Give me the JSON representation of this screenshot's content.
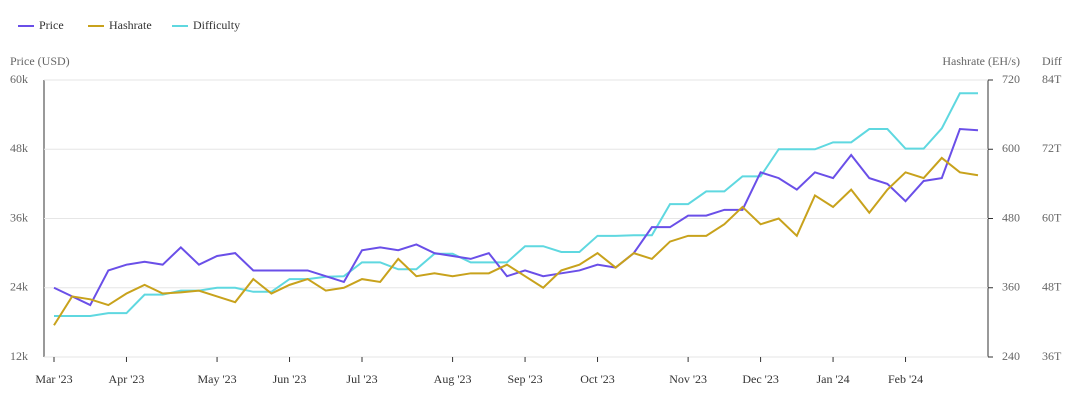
{
  "chart_data": {
    "type": "line",
    "y_label": "Price (USD)",
    "y2_label": "Hashrate (EH/s)",
    "y3_label": "Diff",
    "categories": [
      "Mar '23",
      null,
      null,
      null,
      "Apr '23",
      null,
      null,
      null,
      null,
      "May '23",
      null,
      null,
      null,
      "Jun '23",
      null,
      null,
      null,
      "Jul '23",
      null,
      null,
      null,
      null,
      "Aug '23",
      null,
      null,
      null,
      "Sep '23",
      null,
      null,
      null,
      "Oct '23",
      null,
      null,
      null,
      null,
      "Nov '23",
      null,
      null,
      null,
      "Dec '23",
      null,
      null,
      null,
      "Jan '24",
      null,
      null,
      null,
      "Feb '24",
      null,
      null,
      null,
      null
    ],
    "series": [
      {
        "name": "Price",
        "color": "#6a4fe8",
        "axis": "y",
        "values": [
          24000,
          22500,
          21000,
          27000,
          28000,
          28500,
          28000,
          31000,
          28000,
          29500,
          30000,
          27000,
          27000,
          27000,
          27000,
          26000,
          25000,
          30500,
          31000,
          30500,
          31500,
          30000,
          29500,
          29000,
          30000,
          26000,
          27000,
          26000,
          26500,
          27000,
          28000,
          27500,
          30000,
          34500,
          34500,
          36500,
          36500,
          37500,
          37500,
          44000,
          43000,
          41000,
          44000,
          43000,
          47000,
          43000,
          42000,
          39000,
          42500,
          43000,
          51500,
          51300
        ]
      },
      {
        "name": "Hashrate",
        "color": "#c8a21c",
        "axis": "y2",
        "values": [
          295,
          345,
          340,
          330,
          350,
          365,
          350,
          352,
          355,
          345,
          335,
          375,
          350,
          365,
          375,
          355,
          360,
          375,
          370,
          410,
          380,
          385,
          380,
          385,
          385,
          400,
          380,
          360,
          390,
          400,
          420,
          395,
          420,
          410,
          440,
          450,
          450,
          470,
          500,
          470,
          480,
          450,
          520,
          500,
          530,
          490,
          530,
          560,
          550,
          585,
          560,
          555
        ]
      },
      {
        "name": "Difficulty",
        "color": "#5fd8e0",
        "axis": "y3",
        "values": [
          43.1,
          43.1,
          43.1,
          43.6,
          43.6,
          46.8,
          46.8,
          47.5,
          47.5,
          48.0,
          48.0,
          47.3,
          47.3,
          49.5,
          49.5,
          49.9,
          50.0,
          52.4,
          52.4,
          51.2,
          51.2,
          53.9,
          53.9,
          52.4,
          52.4,
          52.4,
          55.2,
          55.2,
          54.2,
          54.2,
          57.0,
          57.0,
          57.1,
          57.1,
          62.5,
          62.5,
          64.7,
          64.7,
          67.3,
          67.3,
          72.0,
          72.0,
          72.0,
          73.2,
          73.2,
          75.5,
          75.5,
          72.1,
          72.1,
          75.6,
          81.7,
          81.7
        ]
      }
    ],
    "ylim": [
      12000,
      60000
    ],
    "yticks": [
      {
        "value": 12000,
        "label": "12k"
      },
      {
        "value": 24000,
        "label": "24k"
      },
      {
        "value": 36000,
        "label": "36k"
      },
      {
        "value": 48000,
        "label": "48k"
      },
      {
        "value": 60000,
        "label": "60k"
      }
    ],
    "y2lim": [
      240,
      720
    ],
    "y2ticks": [
      240,
      360,
      480,
      600,
      720
    ],
    "y3lim": [
      36,
      84
    ],
    "y3ticks": [
      {
        "value": 36,
        "label": "36T"
      },
      {
        "value": 48,
        "label": "48T"
      },
      {
        "value": 60,
        "label": "60T"
      },
      {
        "value": 72,
        "label": "72T"
      },
      {
        "value": 84,
        "label": "84T"
      }
    ],
    "grid": true
  }
}
